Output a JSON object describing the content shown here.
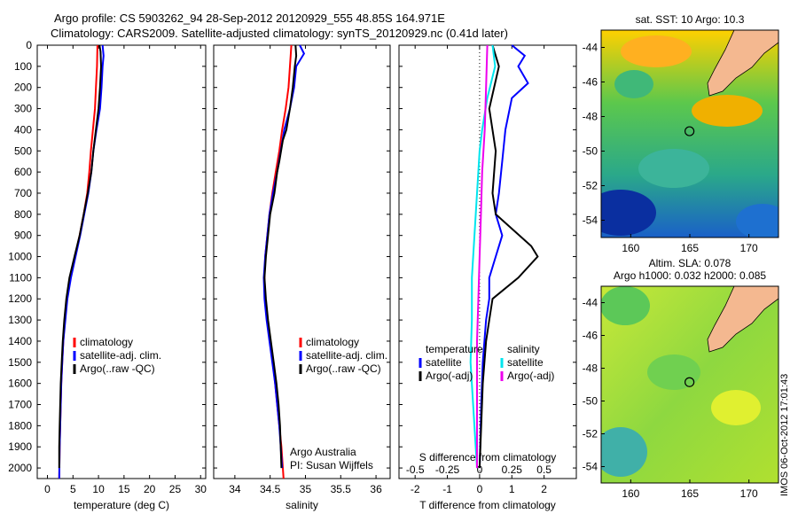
{
  "header": {
    "line1": "Argo profile: CS 5903262_94 28-Sep-2012 20120929_555 48.85S 164.971E",
    "line2": "Climatology: CARS2009. Satellite-adjusted climatology: synTS_20120929.nc (0.41d later)"
  },
  "stamp": "IMOS 06-Oct-2012 17:01:43",
  "colors": {
    "climatology": "#ff0000",
    "satellite": "#0000ff",
    "argo": "#000000",
    "salinity_sat": "#00e5ee",
    "salinity_argo": "#ee00ee",
    "land": "#f4b890"
  },
  "chart_data": [
    {
      "type": "line",
      "id": "temperature",
      "xlabel": "temperature (deg C)",
      "ylabel": "",
      "xlim": [
        -2,
        31
      ],
      "ylim": [
        0,
        2050
      ],
      "xticks": [
        0,
        5,
        10,
        15,
        20,
        25,
        30
      ],
      "yticks": [
        0,
        100,
        200,
        300,
        400,
        500,
        600,
        700,
        800,
        900,
        1000,
        1100,
        1200,
        1300,
        1400,
        1500,
        1600,
        1700,
        1800,
        1900,
        2000
      ],
      "legend": {
        "placement": "lower-center",
        "entries": [
          "climatology",
          "satellite-adj. clim.",
          "Argo(..raw -QC)"
        ]
      },
      "series": [
        {
          "name": "climatology",
          "color": "#ff0000",
          "points": [
            [
              9.8,
              0
            ],
            [
              9.7,
              100
            ],
            [
              9.5,
              200
            ],
            [
              9.3,
              300
            ],
            [
              8.9,
              400
            ],
            [
              8.5,
              500
            ],
            [
              8.2,
              600
            ],
            [
              7.8,
              700
            ],
            [
              7.1,
              800
            ],
            [
              6.3,
              900
            ],
            [
              5.4,
              1000
            ],
            [
              4.4,
              1100
            ],
            [
              3.8,
              1200
            ],
            [
              3.4,
              1300
            ],
            [
              3.1,
              1400
            ],
            [
              2.9,
              1500
            ],
            [
              2.7,
              1600
            ],
            [
              2.6,
              1700
            ],
            [
              2.5,
              1800
            ],
            [
              2.4,
              1900
            ],
            [
              2.3,
              2050
            ]
          ]
        },
        {
          "name": "satellite-adj. clim.",
          "color": "#0000ff",
          "points": [
            [
              10.8,
              0
            ],
            [
              11.0,
              50
            ],
            [
              10.8,
              100
            ],
            [
              10.6,
              200
            ],
            [
              10.3,
              300
            ],
            [
              9.6,
              400
            ],
            [
              9.0,
              500
            ],
            [
              8.6,
              600
            ],
            [
              8.0,
              700
            ],
            [
              7.2,
              800
            ],
            [
              6.4,
              900
            ],
            [
              5.5,
              1000
            ],
            [
              4.6,
              1100
            ],
            [
              3.9,
              1200
            ],
            [
              3.5,
              1300
            ],
            [
              3.1,
              1400
            ],
            [
              2.9,
              1500
            ],
            [
              2.7,
              1600
            ],
            [
              2.6,
              1700
            ],
            [
              2.5,
              1800
            ],
            [
              2.4,
              1900
            ],
            [
              2.3,
              2050
            ]
          ]
        },
        {
          "name": "Argo(..raw -QC)",
          "color": "#000000",
          "points": [
            [
              10.2,
              0
            ],
            [
              10.4,
              30
            ],
            [
              10.5,
              100
            ],
            [
              10.3,
              200
            ],
            [
              10.0,
              300
            ],
            [
              9.5,
              400
            ],
            [
              9.0,
              500
            ],
            [
              8.6,
              600
            ],
            [
              7.9,
              700
            ],
            [
              7.1,
              800
            ],
            [
              6.3,
              900
            ],
            [
              5.3,
              1000
            ],
            [
              4.3,
              1100
            ],
            [
              3.7,
              1200
            ],
            [
              3.3,
              1300
            ],
            [
              3.0,
              1400
            ],
            [
              2.8,
              1500
            ],
            [
              2.6,
              1600
            ],
            [
              2.5,
              1700
            ],
            [
              2.4,
              1800
            ],
            [
              2.3,
              1900
            ],
            [
              2.3,
              2000
            ]
          ]
        }
      ]
    },
    {
      "type": "line",
      "id": "salinity",
      "xlabel": "salinity",
      "ylabel": "",
      "xlim": [
        33.7,
        36.2
      ],
      "ylim": [
        0,
        2050
      ],
      "xticks": [
        34,
        34.5,
        35,
        35.5,
        36
      ],
      "legend": {
        "placement": "lower-center",
        "entries": [
          "climatology",
          "satellite-adj. clim.",
          "Argo(..raw -QC)"
        ]
      },
      "annotations": [
        "Argo Australia",
        "PI: Susan Wijffels"
      ],
      "series": [
        {
          "name": "climatology",
          "color": "#ff0000",
          "points": [
            [
              34.8,
              0
            ],
            [
              34.78,
              100
            ],
            [
              34.76,
              200
            ],
            [
              34.72,
              300
            ],
            [
              34.67,
              400
            ],
            [
              34.63,
              500
            ],
            [
              34.58,
              600
            ],
            [
              34.53,
              700
            ],
            [
              34.49,
              800
            ],
            [
              34.46,
              900
            ],
            [
              34.43,
              1000
            ],
            [
              34.42,
              1100
            ],
            [
              34.43,
              1200
            ],
            [
              34.46,
              1300
            ],
            [
              34.5,
              1400
            ],
            [
              34.54,
              1500
            ],
            [
              34.57,
              1600
            ],
            [
              34.6,
              1700
            ],
            [
              34.63,
              1800
            ],
            [
              34.66,
              1900
            ],
            [
              34.69,
              2050
            ]
          ]
        },
        {
          "name": "satellite-adj. clim.",
          "color": "#0000ff",
          "points": [
            [
              34.92,
              0
            ],
            [
              34.98,
              40
            ],
            [
              34.87,
              100
            ],
            [
              34.84,
              200
            ],
            [
              34.78,
              300
            ],
            [
              34.7,
              400
            ],
            [
              34.65,
              500
            ],
            [
              34.6,
              600
            ],
            [
              34.54,
              700
            ],
            [
              34.49,
              800
            ],
            [
              34.46,
              900
            ],
            [
              34.43,
              1000
            ],
            [
              34.41,
              1100
            ],
            [
              34.42,
              1200
            ],
            [
              34.45,
              1300
            ],
            [
              34.49,
              1400
            ],
            [
              34.53,
              1500
            ],
            [
              34.57,
              1600
            ],
            [
              34.6,
              1700
            ],
            [
              34.63,
              1800
            ],
            [
              34.65,
              1900
            ],
            [
              34.67,
              2000
            ]
          ]
        },
        {
          "name": "Argo(..raw -QC)",
          "color": "#000000",
          "points": [
            [
              34.86,
              0
            ],
            [
              34.87,
              50
            ],
            [
              34.85,
              100
            ],
            [
              34.82,
              200
            ],
            [
              34.78,
              300
            ],
            [
              34.73,
              400
            ],
            [
              34.68,
              450
            ],
            [
              34.63,
              550
            ],
            [
              34.6,
              600
            ],
            [
              34.56,
              700
            ],
            [
              34.5,
              800
            ],
            [
              34.47,
              900
            ],
            [
              34.44,
              1000
            ],
            [
              34.42,
              1100
            ],
            [
              34.44,
              1200
            ],
            [
              34.47,
              1300
            ],
            [
              34.51,
              1400
            ],
            [
              34.55,
              1500
            ],
            [
              34.59,
              1600
            ],
            [
              34.62,
              1700
            ],
            [
              34.64,
              1800
            ],
            [
              34.65,
              1900
            ],
            [
              34.66,
              2000
            ]
          ]
        }
      ]
    },
    {
      "type": "line",
      "id": "difference",
      "xlabel": "T difference from climatology",
      "x2label": "S difference from climatology",
      "xlim": [
        -2.5,
        3
      ],
      "ylim": [
        0,
        2050
      ],
      "xticks": [
        -2,
        -1,
        0,
        1,
        2
      ],
      "x2ticks": [
        -0.5,
        -0.25,
        0,
        0.25,
        0.5
      ],
      "legend": {
        "placement": "lower",
        "groups": [
          {
            "title": "temperature",
            "entries": [
              "satellite",
              "Argo(-adj)"
            ]
          },
          {
            "title": "salinity",
            "entries": [
              "satellite",
              "Argo(-adj)"
            ]
          }
        ]
      },
      "series": [
        {
          "name": "temperature satellite",
          "color": "#0000ff",
          "points": [
            [
              1.0,
              0
            ],
            [
              1.4,
              50
            ],
            [
              1.2,
              100
            ],
            [
              1.5,
              180
            ],
            [
              1.0,
              250
            ],
            [
              0.8,
              400
            ],
            [
              0.7,
              550
            ],
            [
              0.6,
              700
            ],
            [
              0.5,
              800
            ],
            [
              0.7,
              900
            ],
            [
              0.5,
              1000
            ],
            [
              0.3,
              1100
            ],
            [
              0.3,
              1200
            ],
            [
              0.2,
              1300
            ],
            [
              0.1,
              1500
            ],
            [
              0.05,
              1700
            ],
            [
              0.02,
              1900
            ],
            [
              0.0,
              2000
            ]
          ]
        },
        {
          "name": "temperature Argo(-adj)",
          "color": "#000000",
          "points": [
            [
              0.4,
              0
            ],
            [
              0.6,
              100
            ],
            [
              0.3,
              300
            ],
            [
              0.5,
              500
            ],
            [
              0.4,
              700
            ],
            [
              0.5,
              800
            ],
            [
              1.6,
              950
            ],
            [
              1.8,
              1000
            ],
            [
              1.2,
              1100
            ],
            [
              0.4,
              1200
            ],
            [
              0.3,
              1300
            ],
            [
              0.2,
              1400
            ],
            [
              0.1,
              1600
            ],
            [
              0.05,
              1800
            ],
            [
              0.0,
              2000
            ]
          ]
        },
        {
          "name": "salinity satellite",
          "color": "#00e5ee",
          "points": [
            [
              0.1,
              0
            ],
            [
              0.12,
              100
            ],
            [
              0.06,
              250
            ],
            [
              0.02,
              400
            ],
            [
              0.0,
              500
            ],
            [
              -0.02,
              700
            ],
            [
              -0.04,
              900
            ],
            [
              -0.06,
              1100
            ],
            [
              -0.06,
              1300
            ],
            [
              -0.07,
              1500
            ],
            [
              -0.05,
              1700
            ],
            [
              -0.03,
              1900
            ],
            [
              -0.02,
              2000
            ]
          ]
        },
        {
          "name": "salinity Argo(-adj)",
          "color": "#ee00ee",
          "points": [
            [
              0.06,
              0
            ],
            [
              0.05,
              200
            ],
            [
              0.04,
              400
            ],
            [
              0.02,
              600
            ],
            [
              0.01,
              800
            ],
            [
              0.0,
              1000
            ],
            [
              -0.01,
              1200
            ],
            [
              -0.02,
              1400
            ],
            [
              -0.02,
              1600
            ],
            [
              -0.02,
              1800
            ],
            [
              -0.02,
              2000
            ]
          ]
        }
      ]
    },
    {
      "type": "heatmap",
      "id": "map-sst",
      "title": "sat. SST: 10 Argo: 10.3",
      "xticks": [
        160,
        165,
        170
      ],
      "yticks": [
        -44,
        -46,
        -48,
        -50,
        -52,
        -54
      ],
      "xlim": [
        157.5,
        172.5
      ],
      "ylim": [
        -55,
        -43
      ],
      "profile_location": [
        164.971,
        -48.85
      ]
    },
    {
      "type": "heatmap",
      "id": "map-sla",
      "title": "Altim. SLA: 0.078",
      "subtitle": "Argo h1000: 0.032 h2000: 0.085",
      "xticks": [
        160,
        165,
        170
      ],
      "yticks": [
        -44,
        -46,
        -48,
        -50,
        -52,
        -54
      ],
      "xlim": [
        157.5,
        172.5
      ],
      "ylim": [
        -55,
        -43
      ],
      "profile_location": [
        164.971,
        -48.85
      ]
    }
  ]
}
